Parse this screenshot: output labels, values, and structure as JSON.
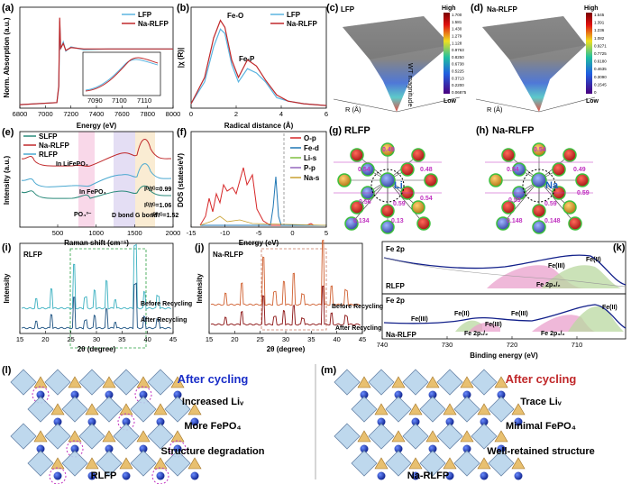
{
  "colors": {
    "lfp": "#5ab4e0",
    "narlfp": "#c0282a",
    "rlfp": "#2a8a7a",
    "slfp": "#4a9a6a",
    "fe_d": "#1f77b4",
    "li_s": "#7fbf3f",
    "p_p": "#9467bd",
    "na_s": "#c8a030",
    "o_p": "#d62728",
    "blue_text": "#1a2ec8",
    "red_text": "#c0282a"
  },
  "panel_labels": {
    "a": "(a)",
    "b": "(b)",
    "c": "(c)",
    "d": "(d)",
    "e": "(e)",
    "f": "(f)",
    "g": "(g)",
    "h": "(h)",
    "i": "(i)",
    "j": "(j)",
    "k": "(k)",
    "l": "(l)",
    "m": "(m)"
  },
  "chart_data": [
    {
      "id": "a",
      "type": "line",
      "xlabel": "Energy (eV)",
      "ylabel": "Norm. Absorption (a.u.)",
      "xlim": [
        6800,
        8000
      ],
      "xticks": [
        "6800",
        "7000",
        "7200",
        "7400",
        "7600",
        "7800",
        "8000"
      ],
      "series": [
        {
          "name": "LFP",
          "x": [
            6800,
            7090,
            7105,
            7112,
            7120,
            7140,
            7160,
            7200,
            7300,
            7500,
            8000
          ],
          "y": [
            0.05,
            0.08,
            0.3,
            1.25,
            0.85,
            0.95,
            0.82,
            0.88,
            0.84,
            0.85,
            0.85
          ]
        },
        {
          "name": "Na-RLFP",
          "x": [
            6800,
            7090,
            7105,
            7112,
            7120,
            7140,
            7160,
            7200,
            7300,
            7500,
            8000
          ],
          "y": [
            0.05,
            0.08,
            0.32,
            1.3,
            0.86,
            0.93,
            0.83,
            0.87,
            0.85,
            0.85,
            0.85
          ]
        }
      ],
      "inset": {
        "xticks": [
          "7090",
          "7100",
          "7110"
        ]
      }
    },
    {
      "id": "b",
      "type": "line",
      "xlabel": "Radical distance (Å)",
      "ylabel": "|χ (R)|",
      "xlim": [
        0,
        6
      ],
      "xticks": [
        "0",
        "2",
        "4",
        "6"
      ],
      "annotations": [
        "Fe-O",
        "Fe-P"
      ],
      "series": [
        {
          "name": "LFP",
          "x": [
            0,
            0.6,
            1.0,
            1.3,
            1.5,
            1.8,
            2.1,
            2.5,
            2.9,
            3.3,
            3.8,
            4.3,
            5,
            6
          ],
          "y": [
            0.05,
            0.3,
            0.7,
            0.9,
            0.85,
            0.5,
            0.3,
            0.45,
            0.4,
            0.3,
            0.12,
            0.08,
            0.05,
            0.03
          ]
        },
        {
          "name": "Na-RLFP",
          "x": [
            0,
            0.6,
            1.0,
            1.3,
            1.5,
            1.8,
            2.1,
            2.5,
            2.9,
            3.3,
            3.8,
            4.3,
            5,
            6
          ],
          "y": [
            0.05,
            0.35,
            0.8,
            1.0,
            0.92,
            0.55,
            0.35,
            0.55,
            0.48,
            0.32,
            0.15,
            0.08,
            0.05,
            0.03
          ]
        }
      ]
    },
    {
      "id": "c",
      "type": "surface",
      "title": "LFP",
      "colorbar": {
        "high_label": "High",
        "low_label": "Low",
        "ticks": [
          "1.700",
          "1.581",
          "1.430",
          "1.279",
          "1.128",
          "0.9763",
          "0.8250",
          "0.6738",
          "0.5225",
          "0.3713",
          "0.2200",
          "0.06875"
        ]
      },
      "axis_labels": [
        "WT magnitude",
        "R (Å)"
      ]
    },
    {
      "id": "d",
      "type": "surface",
      "title": "Na-RLFP",
      "colorbar": {
        "high_label": "High",
        "low_label": "Low",
        "ticks": [
          "1.545",
          "1.391",
          "1.236",
          "1.082",
          "0.9271",
          "0.7725",
          "0.6180",
          "0.4635",
          "0.3090",
          "0.1545",
          "0"
        ]
      },
      "axis_labels": [
        "R (Å)"
      ]
    },
    {
      "id": "e",
      "type": "line",
      "xlabel": "Raman shift (cm⁻¹)",
      "ylabel": "Intensity (a.u.)",
      "xlim": [
        0,
        2000
      ],
      "xticks": [
        "500",
        "1000",
        "1500",
        "2000"
      ],
      "annotations": [
        "In LiFePO₄",
        "In FePO₄",
        "PO₄³⁻",
        "D bond",
        "G bond",
        "Iᴰ/Iᴳ=0.99",
        "Iᴰ/Iᴳ=1.06",
        "Iᴰ/Iᴳ=1.52"
      ],
      "series": [
        {
          "name": "SLFP"
        },
        {
          "name": "Na-RLFP"
        },
        {
          "name": "RLFP"
        }
      ]
    },
    {
      "id": "f",
      "type": "line",
      "xlabel": "Energy (eV)",
      "ylabel": "DOS (states/eV)",
      "xlim": [
        -15,
        5
      ],
      "xticks": [
        "-15",
        "-10",
        "-5",
        "0",
        "5"
      ],
      "series": [
        {
          "name": "O-p"
        },
        {
          "name": "Fe-d"
        },
        {
          "name": "Li-s"
        },
        {
          "name": "P-p"
        },
        {
          "name": "Na-s"
        }
      ]
    },
    {
      "id": "i",
      "type": "line",
      "title": "RLFP",
      "xlabel": "2θ (degree)",
      "ylabel": "Intensity",
      "xlim": [
        15,
        45
      ],
      "xticks": [
        "15",
        "20",
        "25",
        "30",
        "35",
        "40",
        "45"
      ],
      "series": [
        {
          "name": "Before Recycling"
        },
        {
          "name": "After Recycling"
        }
      ]
    },
    {
      "id": "j",
      "type": "line",
      "title": "Na-RLFP",
      "xlabel": "2θ (degree)",
      "ylabel": "Intensity",
      "xlim": [
        15,
        45
      ],
      "xticks": [
        "15",
        "20",
        "25",
        "30",
        "35",
        "40",
        "45"
      ],
      "series": [
        {
          "name": "Before Recycling"
        },
        {
          "name": "After Recycling"
        }
      ]
    },
    {
      "id": "k",
      "type": "line",
      "xlabel": "Binding energy (eV)",
      "xlim": [
        740,
        700
      ],
      "xticks": [
        "740",
        "730",
        "720",
        "710"
      ],
      "top": {
        "title": "Fe 2p",
        "sample": "RLFP",
        "labels": [
          "Fe(III)",
          "Fe(II)",
          "Fe 2p₃/₂"
        ]
      },
      "bottom": {
        "title": "Fe 2p",
        "sample": "Na-RLFP",
        "labels": [
          "Fe(III)",
          "Fe(II)",
          "Fe(III)",
          "Fe(II)",
          "Fe(III)",
          "Fe 2p₁/₂",
          "Fe 2p₃/₂"
        ]
      }
    }
  ],
  "struct_g": {
    "title": "RLFP",
    "center": "Li",
    "dist": [
      "0.49",
      "0.54",
      "0.56",
      "0.48",
      "0.54",
      "0.59",
      "0.134",
      "0.13"
    ]
  },
  "struct_h": {
    "title": "Na-RLFP",
    "center": "Na",
    "dist": [
      "0.54",
      "0.54",
      "0.59",
      "0.49",
      "0.59",
      "0.59",
      "0.148",
      "0.148"
    ]
  },
  "panel_l": {
    "heading": "After cycling",
    "items": [
      "Increased Liᵥ",
      "More FePO₄",
      "Structure degradation"
    ],
    "caption": "RLFP"
  },
  "panel_m": {
    "heading": "After cycling",
    "items": [
      "Trace  Liᵥ",
      "Minimal  FePO₄",
      "Well-retained structure"
    ],
    "caption": "Na-RLFP"
  }
}
